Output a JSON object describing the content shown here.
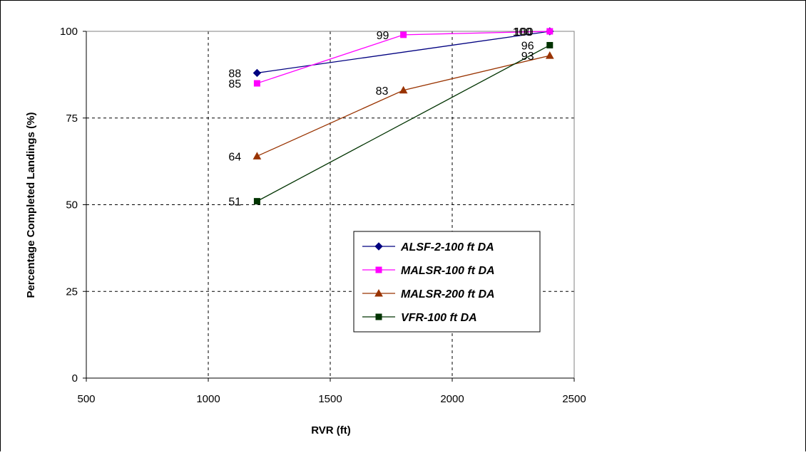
{
  "colors": {
    "plot_border": "#808080",
    "grid": "#000000",
    "frame": "#000000"
  },
  "chart_data": {
    "type": "line",
    "title": "",
    "xlabel": "RVR (ft)",
    "ylabel": "Percentage Completed Landings (%)",
    "xlim": [
      500,
      2500
    ],
    "ylim": [
      0,
      100
    ],
    "x_ticks": [
      500,
      1000,
      1500,
      2000,
      2500
    ],
    "y_ticks": [
      0,
      25,
      50,
      75,
      100
    ],
    "grid": true,
    "legend_position": "center-right",
    "series": [
      {
        "name": "ALSF-2-100 ft DA",
        "color": "#000080",
        "marker": "diamond",
        "points": [
          [
            1200,
            88
          ],
          [
            2400,
            100
          ]
        ],
        "labels": [
          "88",
          "100"
        ]
      },
      {
        "name": "MALSR-100 ft DA",
        "color": "#ff00ff",
        "marker": "square",
        "points": [
          [
            1200,
            85
          ],
          [
            1800,
            99
          ],
          [
            2400,
            100
          ]
        ],
        "labels": [
          "85",
          "99",
          "100"
        ]
      },
      {
        "name": "MALSR-200 ft DA",
        "color": "#993300",
        "marker": "triangle",
        "points": [
          [
            1200,
            64
          ],
          [
            1800,
            83
          ],
          [
            2400,
            93
          ]
        ],
        "labels": [
          "64",
          "83",
          "93"
        ]
      },
      {
        "name": "VFR-100 ft DA",
        "color": "#003300",
        "marker": "square",
        "points": [
          [
            1200,
            51
          ],
          [
            2400,
            96
          ]
        ],
        "labels": [
          "51",
          "96"
        ]
      }
    ]
  }
}
